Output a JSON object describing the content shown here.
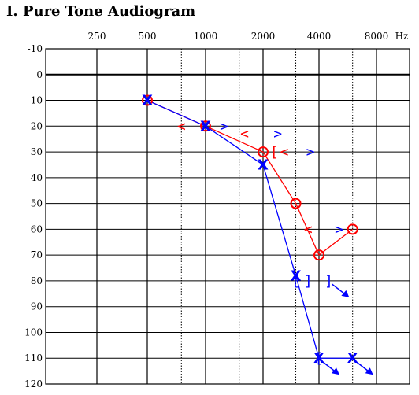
{
  "chart_data": {
    "type": "scatter",
    "title": "I. Pure Tone Audiogram",
    "x_unit": "Hz",
    "x_ticks": [
      "250",
      "500",
      "1000",
      "2000",
      "4000",
      "8000"
    ],
    "y_ticks": [
      "-10",
      "0",
      "10",
      "20",
      "30",
      "40",
      "50",
      "60",
      "70",
      "80",
      "90",
      "100",
      "110",
      "120"
    ],
    "ylim": [
      -10,
      120
    ],
    "grid": true,
    "legend": "none",
    "colors": {
      "right": "#ff0000",
      "left": "#0000ff"
    },
    "series": [
      {
        "ear": "right",
        "symbol": "O",
        "points": [
          {
            "x": 500,
            "y": 10
          },
          {
            "x": 1000,
            "y": 20
          },
          {
            "x": 2000,
            "y": 30
          },
          {
            "x": 3000,
            "y": 50
          },
          {
            "x": 4000,
            "y": 70
          },
          {
            "x": 6000,
            "y": 60
          }
        ]
      },
      {
        "ear": "left",
        "symbol": "X",
        "points": [
          {
            "x": 500,
            "y": 10
          },
          {
            "x": 1000,
            "y": 20
          },
          {
            "x": 2000,
            "y": 35
          },
          {
            "x": 3000,
            "y": 78
          },
          {
            "x": 4000,
            "y": 110
          },
          {
            "x": 6000,
            "y": 110
          }
        ]
      }
    ],
    "extra_symbols": [
      {
        "symbol": "<",
        "ear": "right",
        "x": 750,
        "y": 20
      },
      {
        "symbol": ">",
        "ear": "left",
        "x": 1250,
        "y": 20
      },
      {
        "symbol": "<",
        "ear": "right",
        "x": 1600,
        "y": 23
      },
      {
        "symbol": ">",
        "ear": "left",
        "x": 2400,
        "y": 23
      },
      {
        "symbol": "[",
        "ear": "right",
        "x": 2300,
        "y": 30
      },
      {
        "symbol": "<",
        "ear": "right",
        "x": 2600,
        "y": 30
      },
      {
        "symbol": ">",
        "ear": "left",
        "x": 3600,
        "y": 30
      },
      {
        "symbol": "<",
        "ear": "right",
        "x": 3500,
        "y": 60
      },
      {
        "symbol": ">",
        "ear": "left",
        "x": 5100,
        "y": 60
      },
      {
        "symbol": "[",
        "ear": "left",
        "x": 3000,
        "y": 80
      },
      {
        "symbol": "]",
        "ear": "left",
        "x": 3500,
        "y": 80
      },
      {
        "symbol": "]",
        "ear": "left",
        "x": 4500,
        "y": 80
      },
      {
        "symbol": "[",
        "ear": "left",
        "x": 4000,
        "y": 110
      }
    ],
    "no_response_arrows": [
      {
        "ear": "left",
        "x": 4500,
        "y": 80
      },
      {
        "ear": "left",
        "x": 4000,
        "y": 110
      },
      {
        "ear": "left",
        "x": 6000,
        "y": 110
      }
    ]
  }
}
